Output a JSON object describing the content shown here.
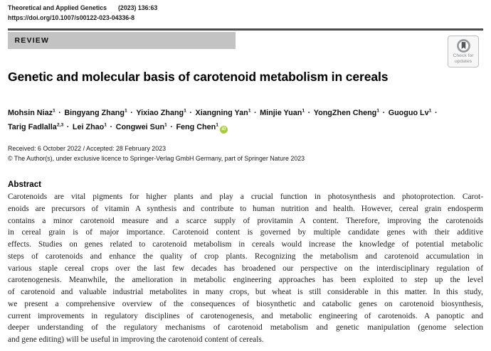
{
  "header": {
    "journal": "Theoretical and Applied Genetics",
    "citation": "(2023) 136:63",
    "doi": "https://doi.org/10.1007/s00122-023-04336-8"
  },
  "article_type": "REVIEW",
  "update_badge": {
    "line1": "Check for",
    "line2": "updates"
  },
  "title": "Genetic and molecular basis of carotenoid metabolism in cereals",
  "separator": "·",
  "authors": [
    {
      "name": "Mohsin Niaz",
      "sup": "1"
    },
    {
      "name": "Bingyang Zhang",
      "sup": "1"
    },
    {
      "name": "Yixiao Zhang",
      "sup": "1"
    },
    {
      "name": "Xiangning Yan",
      "sup": "1"
    },
    {
      "name": "Minjie Yuan",
      "sup": "1"
    },
    {
      "name": "YongZhen Cheng",
      "sup": "1"
    },
    {
      "name": "Guoguo Lv",
      "sup": "1"
    },
    {
      "name": "Tarig Fadlalla",
      "sup": "2,3"
    },
    {
      "name": "Lei Zhao",
      "sup": "1"
    },
    {
      "name": "Congwei Sun",
      "sup": "1"
    },
    {
      "name": "Feng Chen",
      "sup": "1",
      "orcid": true
    }
  ],
  "dates": "Received: 6 October 2022 / Accepted: 28 February 2023",
  "copyright": "© The Author(s), under exclusive licence to Springer-Verlag GmbH Germany, part of Springer Nature 2023",
  "abstract": {
    "heading": "Abstract",
    "lines": [
      "Carotenoids are vital pigments for higher plants and play a crucial function in photosynthesis and photoprotection. Carot-",
      "enoids are precursors of vitamin A synthesis and contribute to human nutrition and health. However, cereal grain endosperm",
      "contains a minor carotenoid measure and a scarce supply of provitamin A content. Therefore, improving the carotenoids",
      "in cereal grain is of major importance. Carotenoid content is governed by multiple candidate genes with their additive",
      "effects. Studies on genes related to carotenoid metabolism in cereals would increase the knowledge of potential metabolic",
      "steps of carotenoids and enhance the quality of crop plants. Recognizing the metabolism and carotenoid accumulation in",
      "various staple cereal crops over the last few decades has broadened our perspective on the interdisciplinary regulation of",
      "carotenogenesis. Meanwhile, the amelioration in metabolic engineering approaches has been exploited to step up the level",
      "of carotenoid and valuable industrial metabolites in many crops, but wheat is still considerable in this matter. In this study,",
      "we present a comprehensive overview of the consequences of biosynthetic and catabolic genes on carotenoid biosynthesis,",
      "current improvements in regulatory disciplines of carotenogenesis, and metabolic engineering of carotenoids. A panoptic and",
      "deeper understanding of the regulatory mechanisms of carotenoid metabolism and genetic manipulation (genome selection",
      "and gene editing) will be useful in improving the carotenoid content of cereals."
    ]
  },
  "icons": {
    "orcid_label": "iD",
    "check_updates": "bookmark-icon"
  },
  "colors": {
    "review_bar": "#c3c3c3",
    "rule": "#4d4d4d",
    "orcid_green": "#a6ce39",
    "badge_border": "#bcbfc1",
    "badge_text": "#8d9193"
  }
}
